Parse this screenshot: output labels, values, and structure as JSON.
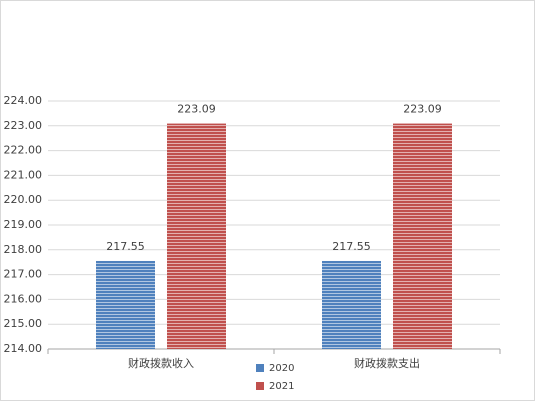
{
  "chart_data": {
    "type": "bar",
    "categories": [
      "财政拨款收入",
      "财政拨款支出"
    ],
    "series": [
      {
        "name": "2020",
        "color": "#4f81bd",
        "values": [
          217.55,
          217.55
        ]
      },
      {
        "name": "2021",
        "color": "#c0504d",
        "values": [
          223.09,
          223.09
        ]
      }
    ],
    "ylim": [
      214,
      224
    ],
    "yticks": [
      {
        "value": 214,
        "label": "214.00"
      },
      {
        "value": 215,
        "label": "215.00"
      },
      {
        "value": 216,
        "label": "216.00"
      },
      {
        "value": 217,
        "label": "217.00"
      },
      {
        "value": 218,
        "label": "218.00"
      },
      {
        "value": 219,
        "label": "219.00"
      },
      {
        "value": 220,
        "label": "220.00"
      },
      {
        "value": 221,
        "label": "221.00"
      },
      {
        "value": 222,
        "label": "222.00"
      },
      {
        "value": 223,
        "label": "223.00"
      },
      {
        "value": 224,
        "label": "224.00"
      }
    ],
    "grid": true,
    "legend": "bottom"
  }
}
